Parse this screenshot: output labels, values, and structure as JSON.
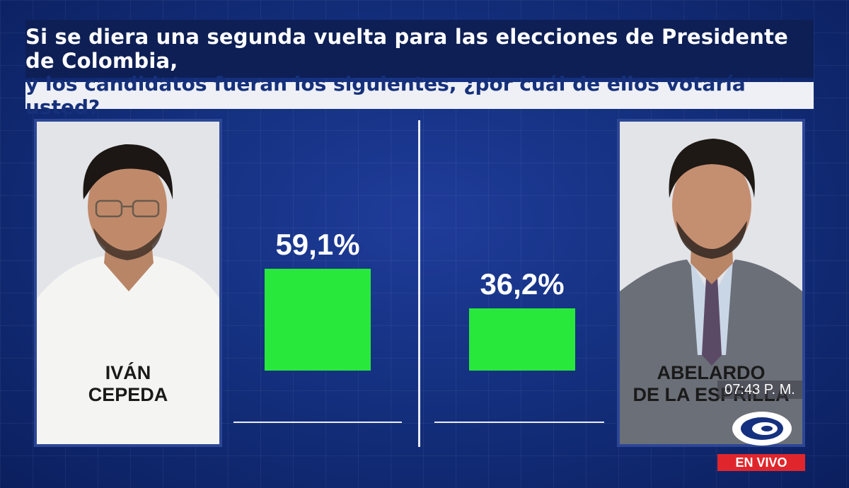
{
  "question": {
    "line1": "Si se diera una segunda vuelta para las elecciones de Presidente de Colombia,",
    "line2": "y los candidatos fueran los siguientes, ¿por cuál de ellos votaría usted?"
  },
  "candidates": [
    {
      "name_line1": "IVÁN",
      "name_line2": "CEPEDA"
    },
    {
      "name_line1": "ABELARDO",
      "name_line2": "DE LA ESPRILLA"
    }
  ],
  "chart_data": {
    "type": "bar",
    "categories": [
      "IVÁN CEPEDA",
      "ABELARDO DE LA ESPRILLA"
    ],
    "values": [
      59.1,
      36.2
    ],
    "value_labels": [
      "59,1%",
      "36,2%"
    ],
    "title": "",
    "xlabel": "",
    "ylabel": "",
    "ylim": [
      0,
      100
    ],
    "grid": false,
    "bar_color": "#28e83c"
  },
  "broadcast": {
    "time": "07:43 P. M.",
    "live_label": "EN VIVO",
    "live_color": "#e0262c",
    "logo_icon": "caracol-logo-icon"
  }
}
